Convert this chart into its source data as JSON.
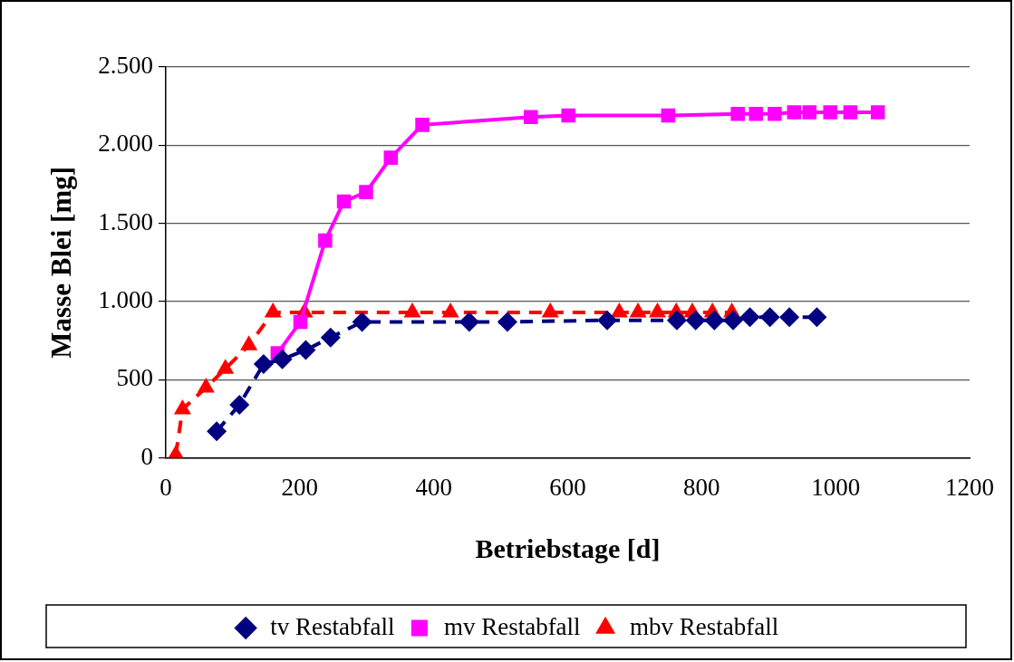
{
  "chart_data": {
    "type": "line",
    "xlabel": "Betriebstage [d]",
    "ylabel": "Masse Blei [mg]",
    "xlim": [
      0,
      1200
    ],
    "xticks": [
      0,
      200,
      400,
      600,
      800,
      1000,
      1200
    ],
    "ylim": [
      0,
      2500
    ],
    "yticks": [
      {
        "value": 0,
        "label": "0"
      },
      {
        "value": 500,
        "label": "500"
      },
      {
        "value": 1000,
        "label": "1.000"
      },
      {
        "value": 1500,
        "label": "1.500"
      },
      {
        "value": 2000,
        "label": "2.000"
      },
      {
        "value": 2500,
        "label": "2.500"
      }
    ],
    "grid": "y",
    "legend": "bottom",
    "series": [
      {
        "name": "tv Restabfall",
        "color": "#000080",
        "marker": "diamond",
        "line_style": "dashed",
        "x": [
          76,
          110,
          146,
          174,
          209,
          246,
          293,
          453,
          510,
          659,
          763,
          791,
          819,
          847,
          872,
          902,
          931,
          972
        ],
        "values": [
          170,
          340,
          600,
          630,
          690,
          770,
          870,
          870,
          870,
          880,
          880,
          880,
          880,
          880,
          900,
          900,
          900,
          900
        ]
      },
      {
        "name": "mv Restabfall",
        "color": "#ff00ff",
        "marker": "square",
        "line_style": "solid",
        "x": [
          167,
          201,
          238,
          266,
          299,
          336,
          383,
          545,
          601,
          750,
          854,
          881,
          909,
          938,
          961,
          992,
          1022,
          1063
        ],
        "values": [
          670,
          870,
          1390,
          1640,
          1700,
          1920,
          2130,
          2180,
          2190,
          2190,
          2200,
          2200,
          2200,
          2210,
          2210,
          2210,
          2210,
          2210
        ]
      },
      {
        "name": "mbv Restabfall",
        "color": "#ff0000",
        "marker": "triangle",
        "line_style": "dashed",
        "x": [
          15,
          25,
          60,
          89,
          124,
          160,
          207,
          368,
          425,
          574,
          677,
          705,
          734,
          762,
          786,
          816,
          845
        ],
        "values": [
          20,
          310,
          450,
          570,
          720,
          930,
          930,
          930,
          930,
          930,
          930,
          930,
          930,
          930,
          930,
          930,
          930
        ]
      }
    ]
  }
}
